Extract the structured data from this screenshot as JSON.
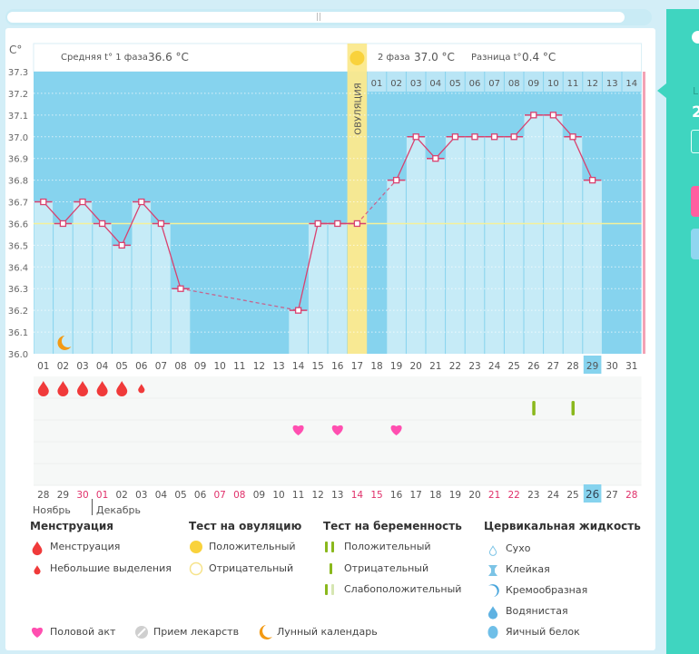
{
  "window": {
    "scroll_grip": "||"
  },
  "chart_data": {
    "type": "line",
    "title": "",
    "ylabel": "C°",
    "ylim": [
      36.0,
      37.3
    ],
    "yticks": [
      "37.3",
      "37.2",
      "37.1",
      "37.0",
      "36.9",
      "36.8",
      "36.7",
      "36.6",
      "36.5",
      "36.4",
      "36.3",
      "36.2",
      "36.1",
      "36.0"
    ],
    "cycle_days": [
      "01",
      "02",
      "03",
      "04",
      "05",
      "06",
      "07",
      "08",
      "09",
      "10",
      "11",
      "12",
      "13",
      "14",
      "15",
      "16",
      "17",
      "18",
      "19",
      "20",
      "21",
      "22",
      "23",
      "24",
      "25",
      "26",
      "27",
      "28",
      "29",
      "30",
      "31"
    ],
    "temperatures": [
      36.7,
      36.6,
      36.7,
      36.6,
      36.5,
      36.7,
      36.6,
      36.3,
      null,
      null,
      null,
      null,
      null,
      36.2,
      36.6,
      36.6,
      36.6,
      null,
      36.8,
      37.0,
      36.9,
      37.0,
      37.0,
      37.0,
      37.0,
      37.1,
      37.1,
      37.0,
      36.8,
      null,
      null
    ],
    "coverline": 36.6,
    "ovulation_day": "17",
    "ovulation_label": "ОВУЛЯЦИЯ",
    "current_cycle_day": "29",
    "phase1_label": "Средняя t° 1 фаза",
    "phase1_value": "36.6 °C",
    "phase2_label": "2 фаза",
    "phase2_value": "37.0 °C",
    "diff_label": "Разница t°",
    "diff_value": "0.4 °C",
    "luteal_days": [
      "01",
      "02",
      "03",
      "04",
      "05",
      "06",
      "07",
      "08",
      "09",
      "10",
      "11",
      "12",
      "13",
      "14"
    ],
    "moon_day": "02",
    "menstruation": [
      {
        "day": "01",
        "type": "full"
      },
      {
        "day": "02",
        "type": "full"
      },
      {
        "day": "03",
        "type": "full"
      },
      {
        "day": "04",
        "type": "full"
      },
      {
        "day": "05",
        "type": "full"
      },
      {
        "day": "06",
        "type": "light"
      }
    ],
    "pregnancy_tests": [
      {
        "day": "26",
        "result": "negative"
      },
      {
        "day": "28",
        "result": "negative"
      }
    ],
    "intercourse_days": [
      "14",
      "16",
      "19"
    ],
    "calendar_dates": [
      {
        "d": "28",
        "weekend": false
      },
      {
        "d": "29",
        "weekend": false
      },
      {
        "d": "30",
        "weekend": true
      },
      {
        "d": "01",
        "weekend": true
      },
      {
        "d": "02",
        "weekend": false
      },
      {
        "d": "03",
        "weekend": false
      },
      {
        "d": "04",
        "weekend": false
      },
      {
        "d": "05",
        "weekend": false
      },
      {
        "d": "06",
        "weekend": false
      },
      {
        "d": "07",
        "weekend": true
      },
      {
        "d": "08",
        "weekend": true
      },
      {
        "d": "09",
        "weekend": false
      },
      {
        "d": "10",
        "weekend": false
      },
      {
        "d": "11",
        "weekend": false
      },
      {
        "d": "12",
        "weekend": false
      },
      {
        "d": "13",
        "weekend": false
      },
      {
        "d": "14",
        "weekend": true
      },
      {
        "d": "15",
        "weekend": true
      },
      {
        "d": "16",
        "weekend": false
      },
      {
        "d": "17",
        "weekend": false
      },
      {
        "d": "18",
        "weekend": false
      },
      {
        "d": "19",
        "weekend": false
      },
      {
        "d": "20",
        "weekend": false
      },
      {
        "d": "21",
        "weekend": true
      },
      {
        "d": "22",
        "weekend": true
      },
      {
        "d": "23",
        "weekend": false
      },
      {
        "d": "24",
        "weekend": false
      },
      {
        "d": "25",
        "weekend": false
      },
      {
        "d": "26",
        "weekend": false,
        "today": true
      },
      {
        "d": "27",
        "weekend": false
      },
      {
        "d": "28",
        "weekend": true
      }
    ],
    "months": [
      "Ноябрь",
      "Декабрь"
    ]
  },
  "legend": {
    "menstruation": {
      "title": "Менструация",
      "items": [
        "Менструация",
        "Небольшие выделения"
      ]
    },
    "ovulation_test": {
      "title": "Тест на овуляцию",
      "items": [
        "Положительный",
        "Отрицательный"
      ]
    },
    "pregnancy_test": {
      "title": "Тест на беременность",
      "items": [
        "Положительный",
        "Отрицательный",
        "Слабоположительный"
      ]
    },
    "cervical_fluid": {
      "title": "Цервикальная жидкость",
      "items": [
        "Сухо",
        "Клейкая",
        "Кремообразная",
        "Водянистая",
        "Яичный белок"
      ]
    },
    "other": [
      "Половой акт",
      "Прием лекарств",
      "Лунный календарь"
    ]
  },
  "colors": {
    "chart_bg": "#86d3ee",
    "bar_fill": "#c6ebf7",
    "line": "#d9416f",
    "ovulation": "#fbe98d",
    "blood": "#f03a3a",
    "heart": "#ff4fb0",
    "test_green": "#8ab81c",
    "moon": "#f39a13",
    "weekend": "#e0306a",
    "teal": "#3fd5c0"
  }
}
